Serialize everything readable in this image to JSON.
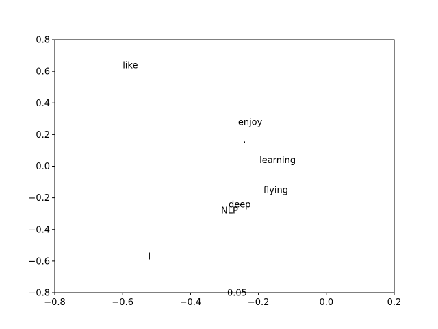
{
  "chart_data": {
    "type": "scatter",
    "title": "",
    "xlabel": "",
    "ylabel": "",
    "xlim": [
      -0.8,
      0.2
    ],
    "ylim": [
      -0.8,
      0.8
    ],
    "x_ticks": [
      "−0.8",
      "−0.6",
      "−0.4",
      "−0.2",
      "0.0",
      "0.2"
    ],
    "y_ticks": [
      "0.8",
      "0.6",
      "0.4",
      "0.2",
      "0.0",
      "−0.2",
      "−0.4",
      "−0.6",
      "−0.8"
    ],
    "grid": false,
    "points": [
      {
        "label": "like",
        "x": -0.6,
        "y": 0.62
      },
      {
        "label": "enjoy",
        "x": -0.26,
        "y": 0.26
      },
      {
        "label": ".",
        "x": -0.245,
        "y": 0.15
      },
      {
        "label": "learning",
        "x": -0.197,
        "y": 0.02
      },
      {
        "label": "flying",
        "x": -0.185,
        "y": -0.17
      },
      {
        "label": "deep",
        "x": -0.288,
        "y": -0.26
      },
      {
        "label": "NLP",
        "x": -0.31,
        "y": -0.3
      },
      {
        "label": "I",
        "x": -0.525,
        "y": -0.59
      },
      {
        "label": "0.05",
        "x": -0.292,
        "y": -0.82
      }
    ]
  }
}
